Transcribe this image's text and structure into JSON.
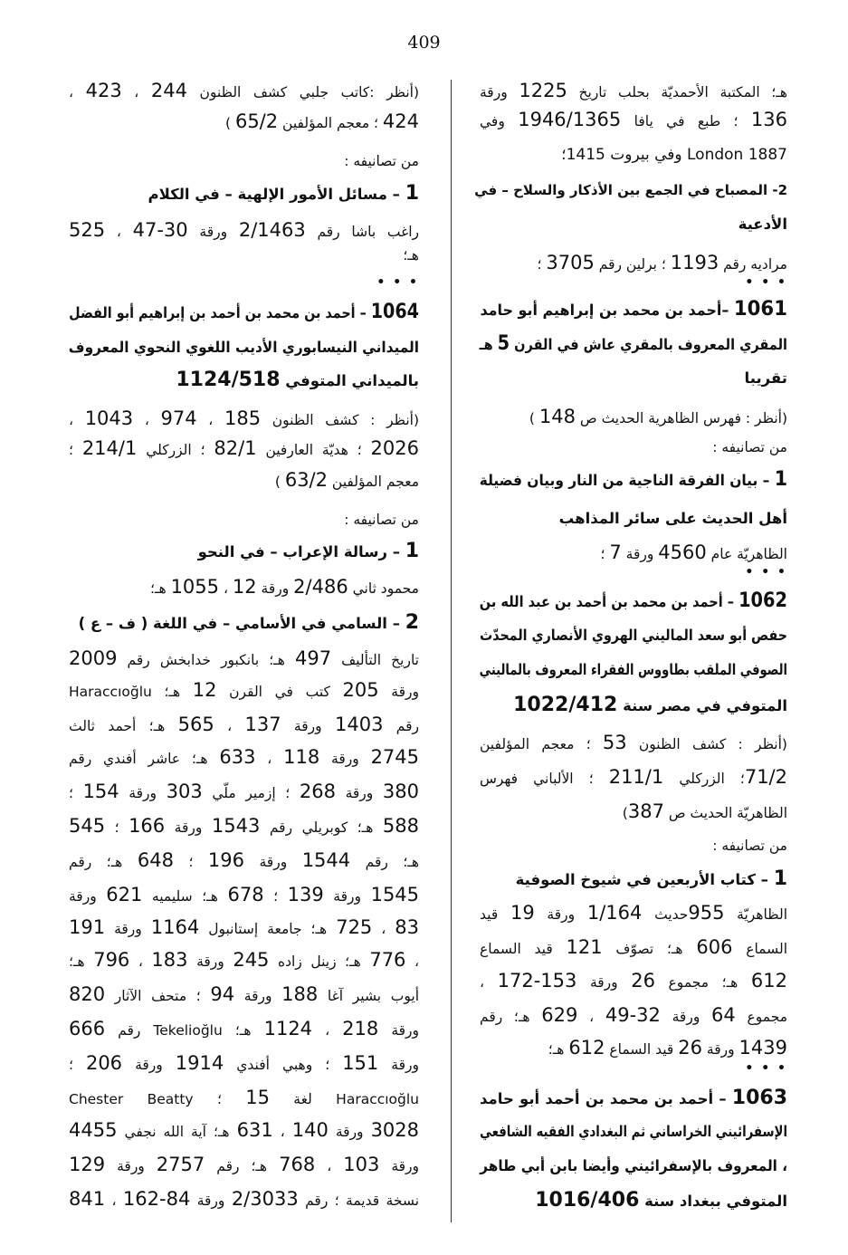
{
  "page_number": "409",
  "columns": {
    "right": [
      {
        "text": "هـ؛ المكتبة الأحمديّة بحلب تاريخ 1225 ورقة",
        "style": "normal"
      },
      {
        "text": "136 ؛ طبع في يافا 1946/1365 وفي",
        "style": "normal"
      },
      {
        "text": "1887 London وفي بيروت 1415؛",
        "style": "normal"
      },
      {
        "text": "2- المصباح في الجمع بين الأذكار والسلاح – في",
        "style": "bold"
      },
      {
        "text": "الأدعية",
        "style": "bold"
      },
      {
        "text": "مراديه رقم 1193 ؛ برلين رقم 3705 ؛",
        "style": "normal"
      },
      {
        "text": "• • •",
        "style": "dots"
      },
      {
        "text": "1061 –أحمد بن محمد بن إبراهيم أبو حامد",
        "style": "bold"
      },
      {
        "text": "المقري المعروف بالمقري عاش في القرن 5 هـ",
        "style": "bold"
      },
      {
        "text": "تقريبا",
        "style": "bold"
      },
      {
        "text": "(أنظر : فهرس الظاهرية الحديث ص 148 )",
        "style": "normal"
      },
      {
        "text": "من تصانيفه :",
        "style": "normal"
      },
      {
        "text": "1 – بيان الفرقة الناجية من النار وبيان فضيلة",
        "style": "bold"
      },
      {
        "text": "أهل الحديث على سائر المذاهب",
        "style": "bold"
      },
      {
        "text": "الظاهريّة عام 4560 ورقة 7 ؛",
        "style": "normal"
      },
      {
        "text": "• • •",
        "style": "dots"
      },
      {
        "text": "1062 – أحمد بن محمد بن أحمد بن عبد الله بن",
        "style": "bold"
      },
      {
        "text": "حفص أبو سعد الماليني الهروي الأنصاري المحدّث",
        "style": "bold"
      },
      {
        "text": "الصوفي الملقب بطاووس الفقراء المعروف بالماليني",
        "style": "bold"
      },
      {
        "text": "المتوفي في مصر سنة 1022/412",
        "style": "bold"
      },
      {
        "text": "(أنظر : كشف الظنون 53 ؛ معجم المؤلفين",
        "style": "normal"
      },
      {
        "text": "71/2؛ الزركلي 211/1 ؛ الألباني فهرس",
        "style": "normal"
      },
      {
        "text": "الظاهريّة الحديث ص 387)",
        "style": "normal"
      },
      {
        "text": "من تصانيفه :",
        "style": "normal"
      },
      {
        "text": "1 – كتاب الأربعين في شيوخ الصوفية",
        "style": "bold"
      },
      {
        "text": "الظاهريّة 955حديث 1/164 ورقة 19 قيد",
        "style": "normal"
      },
      {
        "text": "السماع 606 هـ؛ تصوّف 121 قيد السماع",
        "style": "normal"
      },
      {
        "text": "612 هـ؛ مجموع 26 ورقة 153-172 ،",
        "style": "normal"
      },
      {
        "text": "مجموع 64 ورقة 32-49 ، 629 هـ؛ رقم",
        "style": "normal"
      },
      {
        "text": "1439 ورقة 26 قيد السماع 612 هـ؛",
        "style": "normal"
      },
      {
        "text": "• • •",
        "style": "dots"
      },
      {
        "text": "1063 – أحمد بن محمد بن أحمد أبو حامد",
        "style": "bold"
      },
      {
        "text": "الإسفرائيني الخراساني ثم البغدادي الفقيه الشافعي",
        "style": "bold"
      },
      {
        "text": "، المعروف بالإسفرائيني وأيضا بابن أبي طاهر",
        "style": "bold"
      },
      {
        "text": "المتوفي ببغداد سنة 1016/406",
        "style": "bold"
      }
    ],
    "left": [
      {
        "text": "(أنظر :كاتب جلبي كشف الظنون 244 ، 423 ،",
        "style": "normal"
      },
      {
        "text": "424 ؛ معجم المؤلفين 65/2 )",
        "style": "normal"
      },
      {
        "text": "من تصانيفه :",
        "style": "normal"
      },
      {
        "text": "1 – مسائل الأمور الإلهية – في الكلام",
        "style": "bold"
      },
      {
        "text": "راغب باشا رقم 2/1463 ورقة 30-47 ، 525",
        "style": "normal"
      },
      {
        "text": "هـ؛",
        "style": "normal"
      },
      {
        "text": "• • •",
        "style": "dots"
      },
      {
        "text": "1064 – أحمد بن محمد بن أحمد بن إبراهيم أبو الفضل",
        "style": "bold"
      },
      {
        "text": "الميداني النيسابوري الأديب اللغوي النحوي المعروف",
        "style": "bold"
      },
      {
        "text": "بالميداني المتوفي 1124/518",
        "style": "bold"
      },
      {
        "text": "(أنظر : كشف الظنون 185 ، 974 ، 1043 ،",
        "style": "normal"
      },
      {
        "text": "2026 ؛ هديّة العارفين 82/1 ؛ الزركلي 214/1 ؛",
        "style": "normal"
      },
      {
        "text": "معجم المؤلفين 63/2 )",
        "style": "normal"
      },
      {
        "text": "من تصانيفه :",
        "style": "normal"
      },
      {
        "text": "1 – رسالة الإعراب – في النحو",
        "style": "bold"
      },
      {
        "text": "محمود ثاني 2/486 ورقة 12 ، 1055 هـ؛",
        "style": "normal"
      },
      {
        "text": "2 – السامي في الأسامي – في اللغة ( ف – ع )",
        "style": "bold"
      },
      {
        "text": "تاريخ التأليف 497 هـ؛ بانكبور خدابخش رقم 2009",
        "style": "normal"
      },
      {
        "text": "ورقة 205 كتب في القرن 12 هـ؛ Haraccıoğlu",
        "style": "normal"
      },
      {
        "text": "رقم 1403 ورقة 137 ، 565 هـ؛ أحمد ثالث",
        "style": "normal"
      },
      {
        "text": "2745 ورقة 118 ، 633 هـ؛ عاشر أفندي رقم",
        "style": "normal"
      },
      {
        "text": "380 ورقة 268 ؛ إزمير ملّي 303 ورقة 154 ؛",
        "style": "normal"
      },
      {
        "text": "588 هـ؛ كوبريلي رقم 1543 ورقة 166 ؛ 545",
        "style": "normal"
      },
      {
        "text": "هـ؛ رقم 1544 ورقة 196 ؛ 648 هـ؛ رقم",
        "style": "normal"
      },
      {
        "text": "1545 ورقة 139 ؛ 678 هـ؛ سليميه 621 ورقة",
        "style": "normal"
      },
      {
        "text": "83 ، 725 هـ؛ جامعة إستانبول 1164 ورقة 191",
        "style": "normal"
      },
      {
        "text": "، 776 هـ؛ زينل زاده 245 ورقة 183 ، 796 هـ؛",
        "style": "normal"
      },
      {
        "text": "أيوب بشير آغا 188 ورقة 94 ؛ متحف الآثار 820",
        "style": "normal"
      },
      {
        "text": "ورقة 218 ، 1124 هـ؛ Tekelioğlu رقم 666",
        "style": "normal"
      },
      {
        "text": "ورقة 151 ؛ وهبي أفندي 1914 ورقة 206 ؛",
        "style": "normal"
      },
      {
        "text": "Haraccıoğlu لغة 15 ؛ Chester Beatty",
        "style": "normal"
      },
      {
        "text": "3028 ورقة 140 ، 631 هـ؛ آية الله نجفي 4455",
        "style": "normal"
      },
      {
        "text": "ورقة 103 ، 768 هـ؛ رقم 2757 ورقة 129",
        "style": "normal"
      },
      {
        "text": "نسخة قديمة ؛ رقم 2/3033 ورقة 84-162 ، 841",
        "style": "normal"
      }
    ]
  }
}
